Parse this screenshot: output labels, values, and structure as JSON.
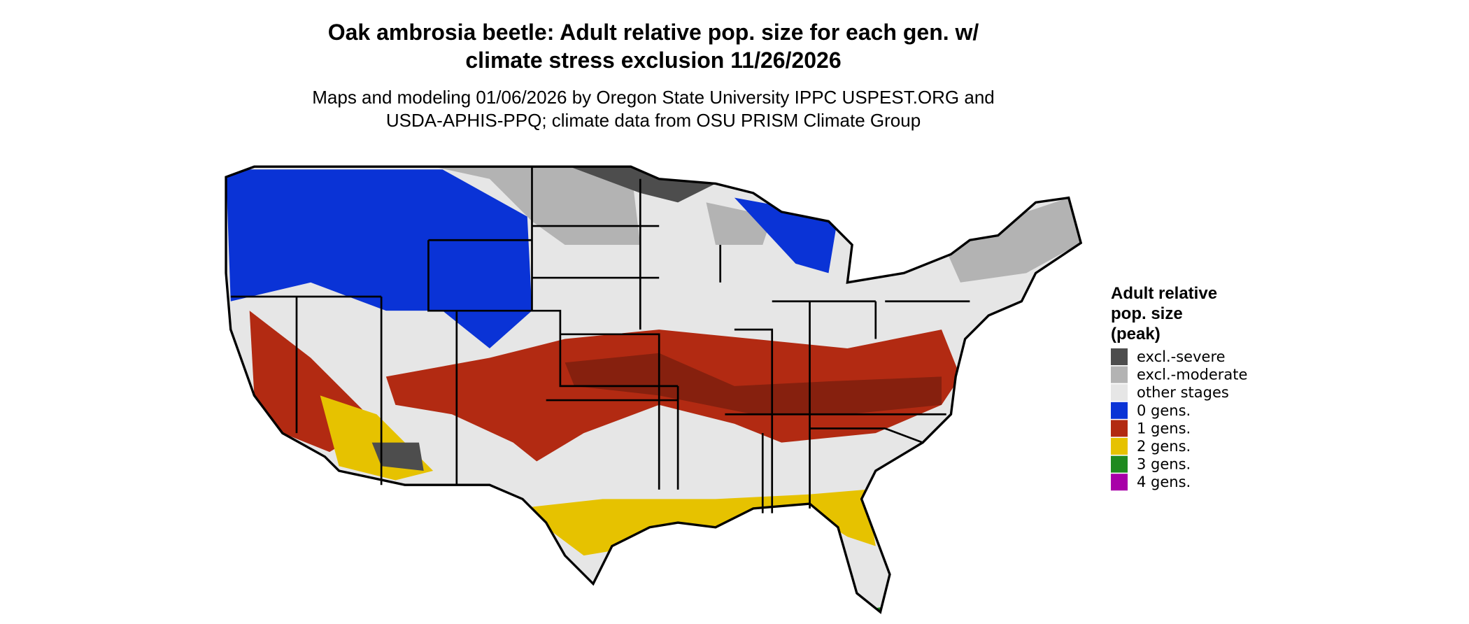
{
  "title": [
    "Oak ambrosia beetle: Adult relative pop. size for each gen. w/",
    "climate stress exclusion 11/26/2026"
  ],
  "subtitle": [
    "Maps and modeling 01/06/2026 by Oregon State University IPPC USPEST.ORG and",
    "USDA-APHIS-PPQ; climate data from OSU PRISM Climate Group"
  ],
  "legend": {
    "title": [
      "Adult relative",
      "pop. size",
      "(peak)"
    ],
    "items": [
      {
        "label": "excl.-severe",
        "color": "#4d4d4d"
      },
      {
        "label": "excl.-moderate",
        "color": "#b3b3b3"
      },
      {
        "label": "other stages",
        "color": "#e6e6e6"
      },
      {
        "label": "0 gens.",
        "color": "#0a33d6"
      },
      {
        "label": "1 gens.",
        "color": "#b22a12"
      },
      {
        "label": "2 gens.",
        "color": "#e6c200"
      },
      {
        "label": "3 gens.",
        "color": "#1f8a1f"
      },
      {
        "label": "4 gens.",
        "color": "#a800a8"
      }
    ]
  }
}
